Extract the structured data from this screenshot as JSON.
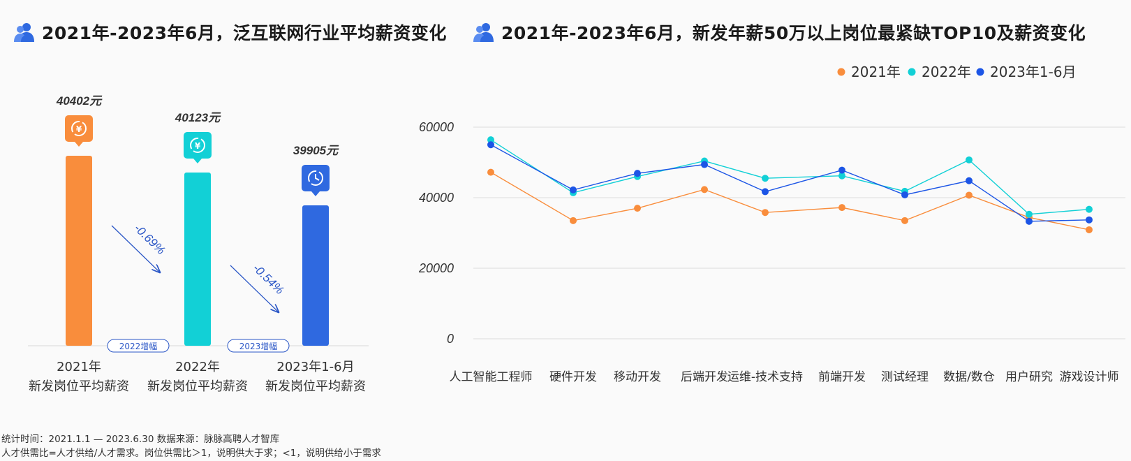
{
  "left": {
    "title": "2021年-2023年6月，泛互联网行业平均薪资变化",
    "bars": [
      {
        "year_label": "2021年",
        "sub_label": "新发岗位平均薪资",
        "value_label": "40402元",
        "value": 40402,
        "color": "#f98d3c",
        "icon": "yuan-refresh-icon"
      },
      {
        "year_label": "2022年",
        "sub_label": "新发岗位平均薪资",
        "value_label": "40123元",
        "value": 40123,
        "color": "#12d0d6",
        "icon": "yuan-refresh-icon"
      },
      {
        "year_label": "2023年1-6月",
        "sub_label": "新发岗位平均薪资",
        "value_label": "39905元",
        "value": 39905,
        "color": "#2f69e0",
        "icon": "clock-refresh-icon"
      }
    ],
    "changes": [
      {
        "pct": "-0.69%",
        "tag": "2022增幅"
      },
      {
        "pct": "-0.54%",
        "tag": "2023增幅"
      }
    ]
  },
  "chart_data": {
    "type": "line",
    "title": "2021年-2023年6月，新发年薪50万以上岗位最紧缺TOP10及薪资变化",
    "categories": [
      "人工智能工程师",
      "硬件开发",
      "移动开发",
      "后端开发",
      "运维-技术支持",
      "前端开发",
      "测试经理",
      "数据/数仓",
      "用户研究",
      "游戏设计师"
    ],
    "series": [
      {
        "name": "2021年",
        "color": "#f98d3c",
        "values": [
          47200,
          33500,
          37000,
          42300,
          35800,
          37200,
          33500,
          40700,
          34400,
          30900
        ]
      },
      {
        "name": "2022年",
        "color": "#12d0d6",
        "values": [
          56400,
          41400,
          46000,
          50400,
          45500,
          46200,
          41800,
          50700,
          35300,
          36700
        ]
      },
      {
        "name": "2023年1-6月",
        "color": "#1c55e6",
        "values": [
          55000,
          42200,
          46900,
          49400,
          41700,
          47800,
          40800,
          44800,
          33300,
          33700
        ]
      }
    ],
    "yticks": [
      0,
      20000,
      40000,
      60000
    ],
    "ylim": [
      0,
      60000
    ],
    "legend_position": "top-right",
    "grid": true
  },
  "footer": {
    "line1": "统计时间：2021.1.1 — 2023.6.30   数据来源：脉脉高聘人才智库",
    "line2": "人才供需比=人才供给/人才需求。岗位供需比＞1，说明供大于求；<1，说明供给小于需求"
  }
}
